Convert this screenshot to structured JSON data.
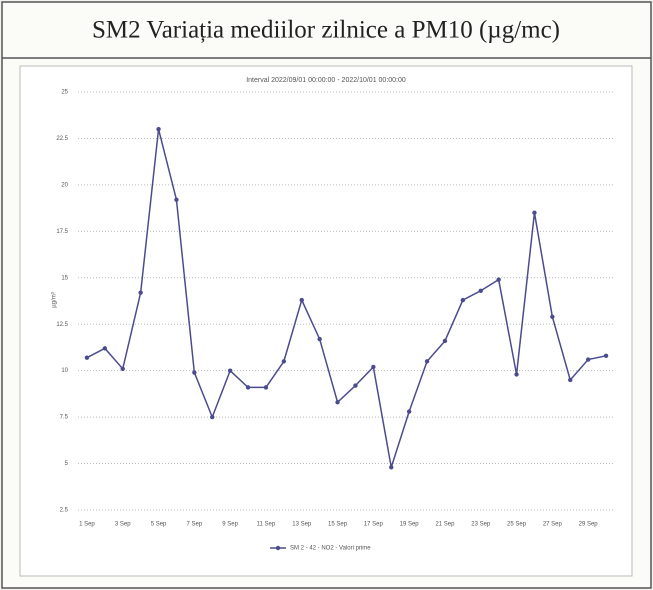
{
  "chart_data": {
    "type": "line",
    "title": "SM2 Variația mediilor zilnice a PM10 (µg/mc)",
    "subtitle": "Interval 2022/09/01 00:00:00 - 2022/10/01 00:00:00",
    "y_label": "µg/m³",
    "categories": [
      "1 Sep",
      null,
      "3 Sep",
      null,
      "5 Sep",
      null,
      "7 Sep",
      null,
      "9 Sep",
      null,
      "11 Sep",
      null,
      "13 Sep",
      null,
      "15 Sep",
      null,
      "17 Sep",
      null,
      "19 Sep",
      null,
      "21 Sep",
      null,
      "23 Sep",
      null,
      "25 Sep",
      null,
      "27 Sep",
      null,
      "29 Sep",
      null
    ],
    "series": [
      {
        "name": "SM 2 - 42 - NO2 - Valori prime",
        "color": "#4b4b8f",
        "values": [
          10.7,
          11.2,
          10.1,
          14.2,
          23.0,
          19.2,
          9.9,
          7.5,
          10.0,
          9.1,
          9.1,
          10.5,
          13.8,
          11.7,
          8.3,
          9.2,
          10.2,
          4.8,
          7.8,
          10.5,
          11.6,
          13.8,
          14.3,
          14.9,
          9.8,
          18.5,
          12.9,
          9.5,
          10.6,
          10.8
        ]
      }
    ],
    "ylim": [
      2.5,
      25
    ],
    "yticks": [
      2.5,
      5,
      7.5,
      10,
      12.5,
      15,
      17.5,
      20,
      22.5,
      25
    ],
    "grid": true
  }
}
